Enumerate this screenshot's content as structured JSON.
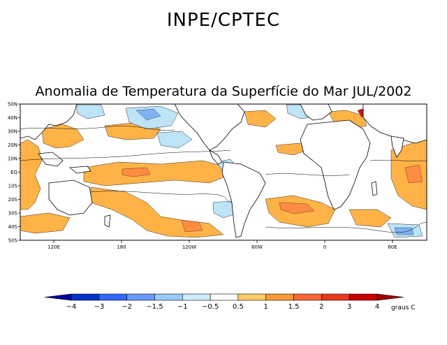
{
  "header": {
    "organization": "INPE/CPTEC",
    "title": "Anomalia de Temperatura da Superfície do Mar JUL/2002"
  },
  "map": {
    "latitude_labels": [
      "50N",
      "40N",
      "30N",
      "20N",
      "10N",
      "EQ",
      "10S",
      "20S",
      "30S",
      "40S",
      "50S"
    ],
    "longitude_labels": [
      "120E",
      "180",
      "120W",
      "60W",
      "0",
      "60E"
    ],
    "ocean_color": "#ffffff",
    "land_color": "#ffffff"
  },
  "colorbar": {
    "levels": [
      "-4",
      "-3",
      "-2",
      "-1.5",
      "-1",
      "-0.5",
      "0.5",
      "1",
      "1.5",
      "2",
      "3",
      "4"
    ],
    "colors": [
      "#0000a0",
      "#0033c8",
      "#3366ff",
      "#6699ff",
      "#99ccff",
      "#cceeff",
      "#ffffff",
      "#ffcc66",
      "#ff9933",
      "#ff6633",
      "#e83a1a",
      "#cc0000",
      "#a00000"
    ],
    "units": "graus C"
  }
}
